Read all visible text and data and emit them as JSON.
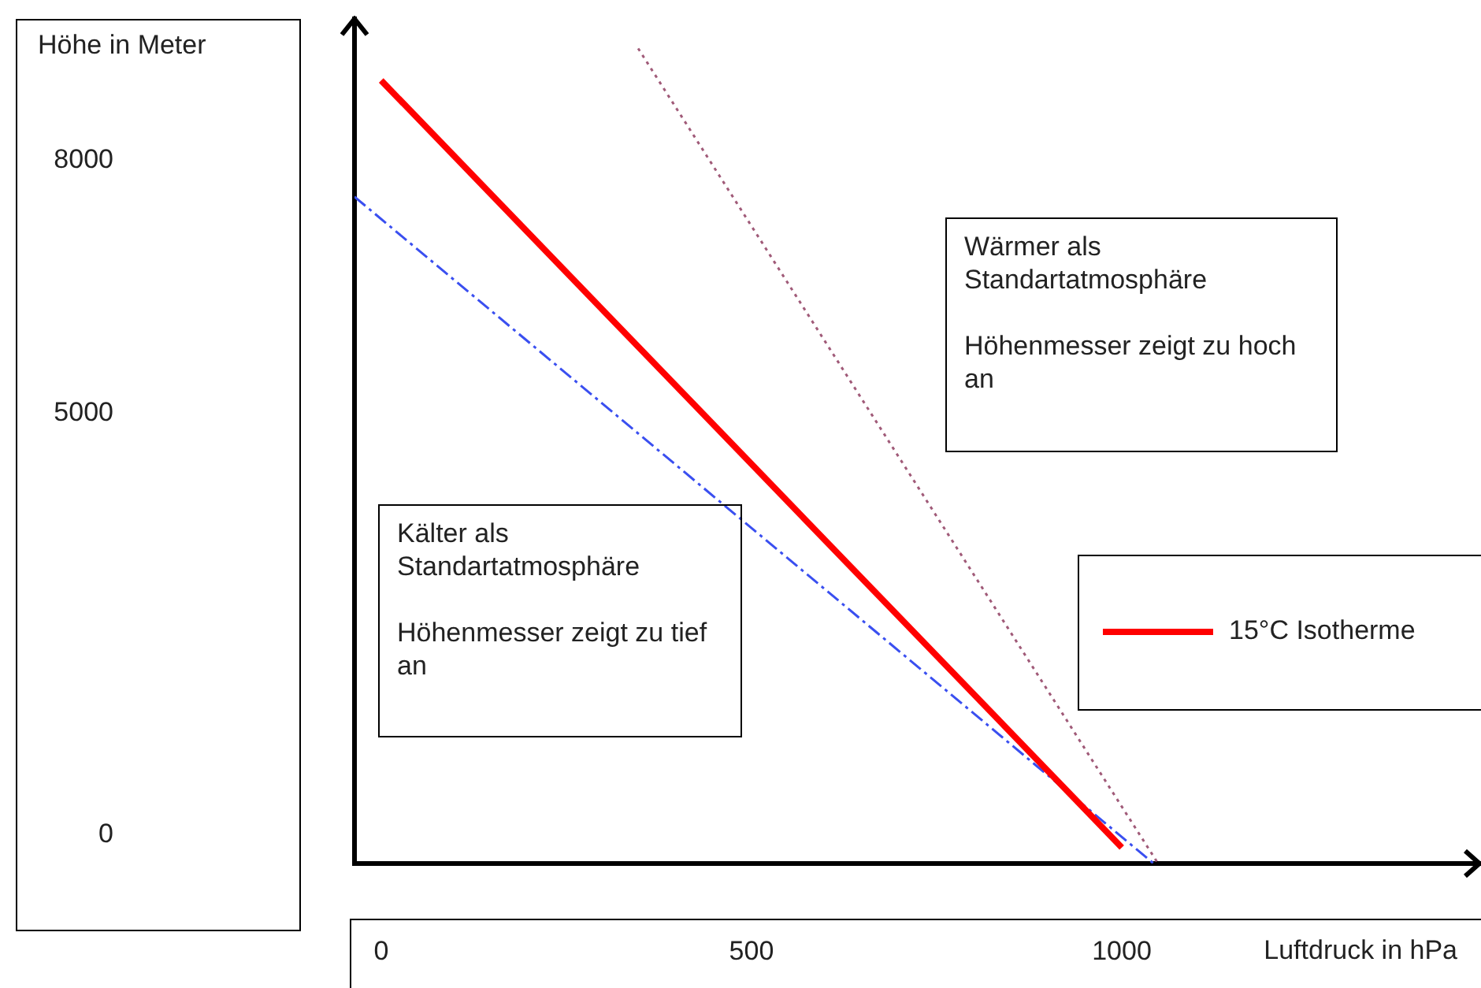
{
  "chart_data": {
    "type": "line",
    "xlabel": "Luftdruck in hPa",
    "xlim": [
      -36,
      1485
    ],
    "ylim": [
      -340,
      9680
    ],
    "xticks": [
      0,
      500,
      1000
    ],
    "yticks": [
      0,
      5000,
      8000
    ],
    "grid": false,
    "legend": "right",
    "marker": "none",
    "series": [
      {
        "name": "15°C Isotherme",
        "color": "#ff0000",
        "x": [
          0,
          1000
        ],
        "values": [
          8950,
          -150
        ],
        "line_style": "solid"
      },
      {
        "color": "#3a4ff0",
        "x": [
          -36,
          1043
        ],
        "values": [
          7570,
          -340
        ],
        "line_style": "dashed"
      },
      {
        "color": "#a05a78",
        "x": [
          347,
          1049
        ],
        "values": [
          9330,
          -340
        ],
        "line_style": "dotted"
      }
    ],
    "annotations": [
      "Kälter als Standartatmosphäre\n\nHöhenmesser zeigt zu tief an",
      "Wärmer als Standartatmosphäre\n\nHöhenmesser zeigt zu hoch an",
      "Höhe in Meter"
    ]
  }
}
